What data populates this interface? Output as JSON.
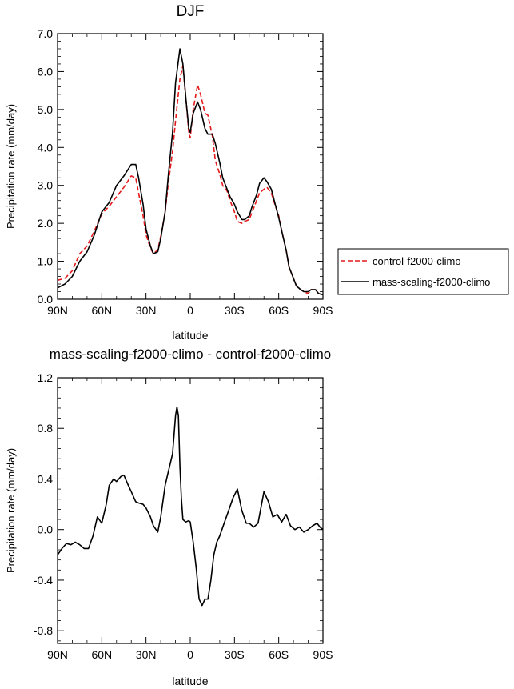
{
  "colors": {
    "control": "#e41a1c",
    "mass": "#000000",
    "axis": "#000000"
  },
  "chart_data": [
    {
      "type": "line",
      "title": "DJF",
      "xlabel": "latitude",
      "ylabel": "Precipitation rate (mm/day)",
      "xlim": [
        90,
        -90
      ],
      "ylim": [
        0,
        7
      ],
      "x_ticks": [
        90,
        60,
        30,
        0,
        -30,
        -60,
        -90
      ],
      "x_tick_labels": [
        "90N",
        "60N",
        "30N",
        "0",
        "30S",
        "60S",
        "90S"
      ],
      "y_ticks": [
        0,
        1,
        2,
        3,
        4,
        5,
        6,
        7
      ],
      "y_tick_labels": [
        "0.0",
        "1.0",
        "2.0",
        "3.0",
        "4.0",
        "5.0",
        "6.0",
        "7.0"
      ],
      "grid": false,
      "legend_position": "right",
      "series": [
        {
          "name": "control-f2000-climo",
          "style": "dashed",
          "color": "#e41a1c",
          "x": [
            90,
            85,
            80,
            75,
            70,
            65,
            60,
            55,
            50,
            45,
            40,
            37,
            35,
            32,
            30,
            27,
            25,
            22,
            20,
            17,
            15,
            12,
            10,
            7,
            5,
            3,
            1,
            0,
            -2,
            -5,
            -7,
            -10,
            -12,
            -15,
            -17,
            -20,
            -22,
            -25,
            -27,
            -30,
            -32,
            -35,
            -37,
            -40,
            -42,
            -45,
            -47,
            -50,
            -52,
            -55,
            -57,
            -60,
            -62,
            -65,
            -67,
            -70,
            -72,
            -75,
            -77,
            -80,
            -82,
            -85,
            -87,
            -90
          ],
          "y": [
            0.5,
            0.55,
            0.75,
            1.2,
            1.4,
            1.8,
            2.25,
            2.45,
            2.7,
            2.95,
            3.25,
            3.2,
            2.8,
            2.2,
            1.7,
            1.35,
            1.2,
            1.3,
            1.65,
            2.3,
            3.0,
            3.9,
            4.7,
            5.8,
            6.15,
            5.3,
            4.4,
            4.25,
            5.0,
            5.65,
            5.4,
            4.9,
            4.85,
            4.3,
            3.65,
            3.3,
            3.0,
            2.85,
            2.6,
            2.3,
            2.05,
            2.0,
            2.05,
            2.1,
            2.3,
            2.6,
            2.8,
            2.9,
            2.95,
            2.8,
            2.55,
            2.2,
            1.8,
            1.3,
            0.85,
            0.55,
            0.35,
            0.25,
            0.2,
            0.15,
            0.25,
            0.25,
            0.15,
            0.12
          ]
        },
        {
          "name": "mass-scaling-f2000-climo",
          "style": "solid",
          "color": "#000000",
          "x": [
            90,
            85,
            80,
            75,
            70,
            65,
            60,
            55,
            50,
            45,
            40,
            37,
            35,
            32,
            30,
            27,
            25,
            22,
            20,
            17,
            15,
            12,
            10,
            7,
            5,
            3,
            1,
            0,
            -2,
            -5,
            -7,
            -10,
            -12,
            -15,
            -17,
            -20,
            -22,
            -25,
            -27,
            -30,
            -32,
            -35,
            -37,
            -40,
            -42,
            -45,
            -47,
            -50,
            -52,
            -55,
            -57,
            -60,
            -62,
            -65,
            -67,
            -70,
            -72,
            -75,
            -77,
            -80,
            -82,
            -85,
            -87,
            -90
          ],
          "y": [
            0.3,
            0.4,
            0.6,
            1.0,
            1.25,
            1.7,
            2.3,
            2.55,
            3.0,
            3.25,
            3.55,
            3.55,
            3.2,
            2.5,
            1.85,
            1.4,
            1.2,
            1.25,
            1.6,
            2.3,
            3.2,
            4.4,
            5.7,
            6.6,
            6.2,
            5.3,
            4.5,
            4.4,
            4.9,
            5.2,
            5.0,
            4.5,
            4.35,
            4.35,
            4.1,
            3.6,
            3.2,
            2.9,
            2.7,
            2.5,
            2.3,
            2.1,
            2.1,
            2.2,
            2.45,
            2.75,
            3.05,
            3.2,
            3.1,
            2.9,
            2.6,
            2.15,
            1.8,
            1.3,
            0.85,
            0.55,
            0.35,
            0.25,
            0.2,
            0.2,
            0.25,
            0.25,
            0.15,
            0.12
          ]
        }
      ]
    },
    {
      "type": "line",
      "title": "mass-scaling-f2000-climo - control-f2000-climo",
      "xlabel": "latitude",
      "ylabel": "Precipitation rate (mm/day)",
      "xlim": [
        90,
        -90
      ],
      "ylim": [
        -0.9,
        1.2
      ],
      "x_ticks": [
        90,
        60,
        30,
        0,
        -30,
        -60,
        -90
      ],
      "x_tick_labels": [
        "90N",
        "60N",
        "30N",
        "0",
        "30S",
        "60S",
        "90S"
      ],
      "y_ticks": [
        -0.8,
        -0.4,
        0.0,
        0.4,
        0.8,
        1.2
      ],
      "y_tick_labels": [
        "-0.8",
        "-0.4",
        "0.0",
        "0.4",
        "0.8",
        "1.2"
      ],
      "grid": false,
      "series": [
        {
          "color": "#000000",
          "style": "solid",
          "x": [
            90,
            87,
            84,
            81,
            78,
            75,
            72,
            69,
            66,
            63,
            60,
            57,
            55,
            52,
            50,
            47,
            45,
            42,
            40,
            37,
            35,
            32,
            30,
            27,
            25,
            22,
            20,
            17,
            15,
            12,
            10,
            9,
            8,
            7,
            6,
            5,
            3,
            1,
            0,
            -2,
            -4,
            -6,
            -8,
            -10,
            -12,
            -14,
            -16,
            -18,
            -20,
            -23,
            -26,
            -29,
            -32,
            -35,
            -38,
            -40,
            -43,
            -46,
            -50,
            -53,
            -56,
            -59,
            -62,
            -65,
            -68,
            -71,
            -74,
            -77,
            -80,
            -83,
            -86,
            -88,
            -90
          ],
          "y": [
            -0.2,
            -0.15,
            -0.11,
            -0.12,
            -0.1,
            -0.12,
            -0.15,
            -0.15,
            -0.05,
            0.1,
            0.05,
            0.2,
            0.35,
            0.4,
            0.38,
            0.42,
            0.43,
            0.35,
            0.3,
            0.22,
            0.21,
            0.2,
            0.17,
            0.1,
            0.03,
            -0.02,
            0.1,
            0.35,
            0.45,
            0.6,
            0.9,
            0.97,
            0.9,
            0.5,
            0.25,
            0.08,
            0.06,
            0.07,
            0.06,
            -0.1,
            -0.3,
            -0.55,
            -0.6,
            -0.55,
            -0.55,
            -0.4,
            -0.2,
            -0.1,
            -0.05,
            0.05,
            0.15,
            0.25,
            0.32,
            0.15,
            0.05,
            0.05,
            0.02,
            0.05,
            0.3,
            0.22,
            0.1,
            0.12,
            0.06,
            0.12,
            0.03,
            0.0,
            0.02,
            -0.02,
            0.0,
            0.03,
            0.05,
            0.02,
            0.0
          ]
        }
      ]
    }
  ]
}
